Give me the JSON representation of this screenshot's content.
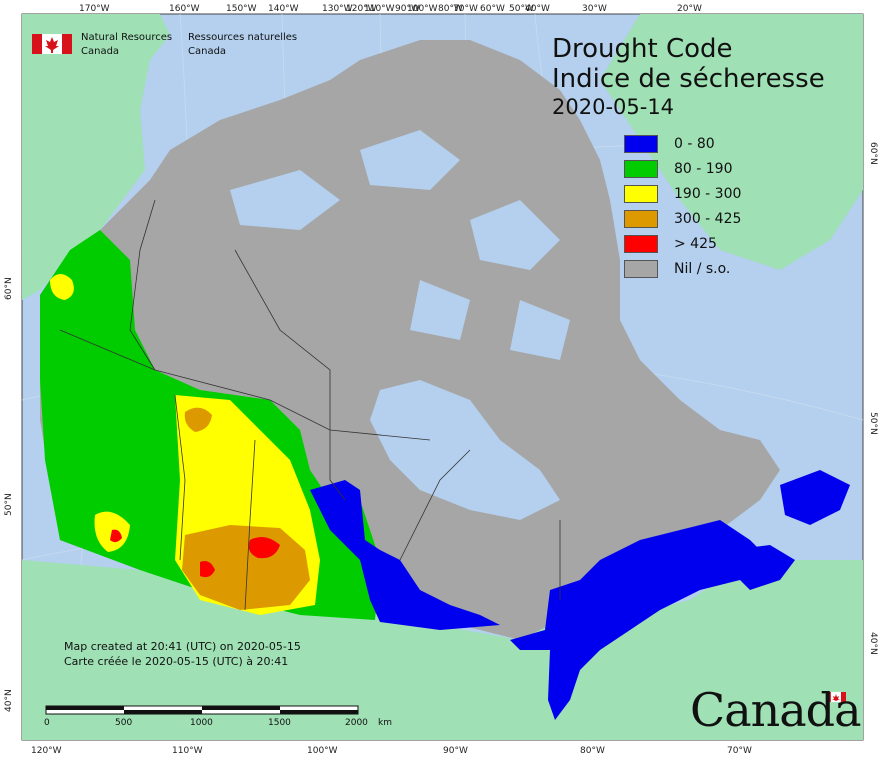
{
  "title_en": "Drought Code",
  "title_fr": "Indice de sécheresse",
  "date": "2020-05-14",
  "agency": {
    "en_line1": "Natural Resources",
    "en_line2": "Canada",
    "fr_line1": "Ressources naturelles",
    "fr_line2": "Canada"
  },
  "legend": [
    {
      "label": "0 - 80",
      "color": "#0000ee"
    },
    {
      "label": "80 - 190",
      "color": "#00cc00"
    },
    {
      "label": "190 - 300",
      "color": "#ffff00"
    },
    {
      "label": "300 - 425",
      "color": "#dd9900"
    },
    {
      "label": "> 425",
      "color": "#ff0000"
    },
    {
      "label": "Nil / s.o.",
      "color": "#a6a6a6"
    }
  ],
  "credit": {
    "line1": "Map created at 20:41 (UTC) on 2020-05-15",
    "line2": "Carte créée le 2020-05-15 (UTC) à 20:41"
  },
  "wordmark": "Canada",
  "top_lon_labels": [
    "170°W",
    "160°W",
    "150°W",
    "140°W",
    "130°W",
    "120°W",
    "110°W",
    "100°W",
    "90°W",
    "80°W",
    "70°W",
    "60°W",
    "50°W",
    "40°W",
    "30°W",
    "20°W"
  ],
  "bottom_lon_labels": [
    "120°W",
    "110°W",
    "100°W",
    "90°W",
    "80°W",
    "70°W"
  ],
  "left_lat_labels": [
    "60°N",
    "50°N",
    "40°N"
  ],
  "right_lat_labels": [
    "60°N",
    "50°N",
    "40°N"
  ],
  "scalebar": {
    "ticks": [
      "0",
      "500",
      "1000",
      "1500",
      "2000"
    ],
    "unit": "km"
  },
  "colors": {
    "ocean": "#b4d0ee",
    "land": "#9fe0b5",
    "nodata": "#a6a6a6",
    "border": "#333333"
  }
}
